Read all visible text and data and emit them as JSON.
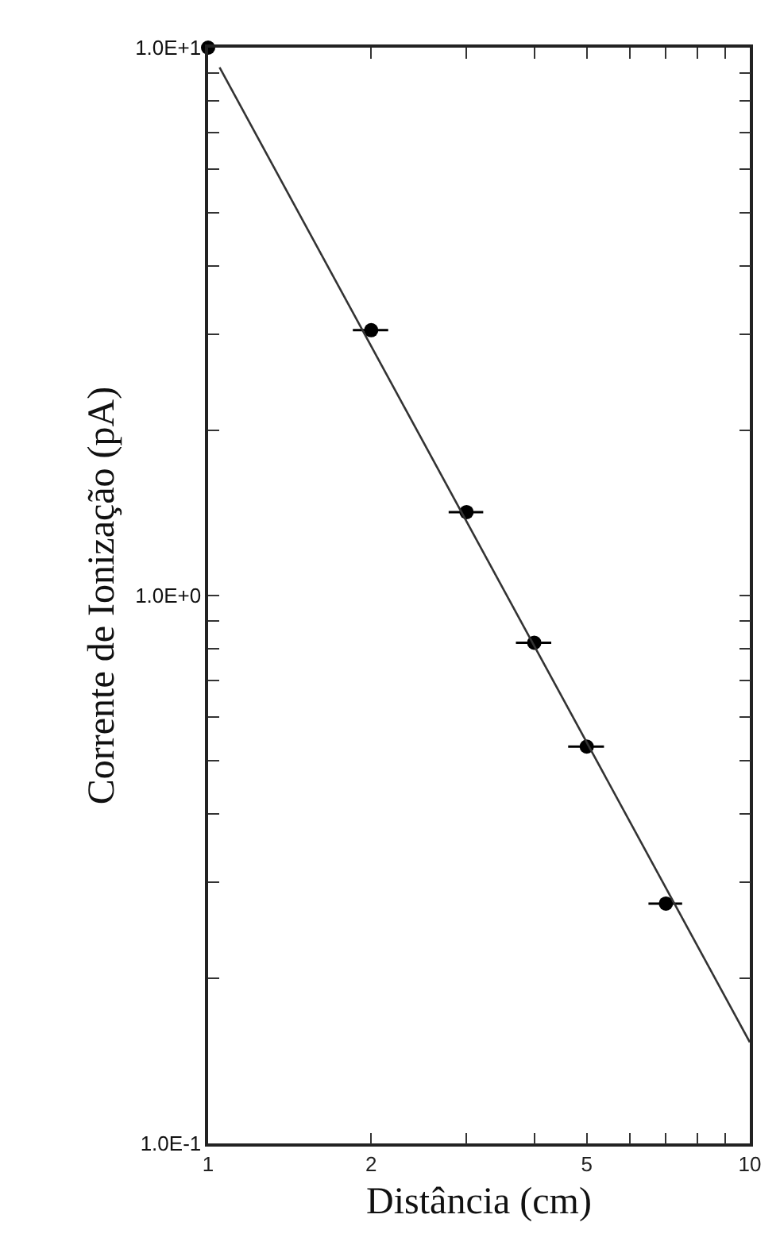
{
  "chart_data": {
    "type": "scatter",
    "xlabel": "Distância (cm)",
    "ylabel": "Corrente de Ionização (pA)",
    "log": "xy",
    "legend": false,
    "xlim": [
      1,
      10
    ],
    "ylim": [
      0.1,
      10
    ],
    "xticks": [
      1,
      2,
      {
        "value": 3,
        "label": null
      },
      {
        "value": 4,
        "label": null
      },
      5,
      {
        "value": 6,
        "label": null
      },
      {
        "value": 7,
        "label": null
      },
      {
        "value": 8,
        "label": null
      },
      {
        "value": 9,
        "label": null
      },
      10
    ],
    "yticks": [
      {
        "value": 0.1,
        "label": "1.0E-1"
      },
      {
        "value": 0.2,
        "label": null
      },
      {
        "value": 0.3,
        "label": null
      },
      {
        "value": 0.4,
        "label": null
      },
      {
        "value": 0.5,
        "label": null
      },
      {
        "value": 0.6,
        "label": null
      },
      {
        "value": 0.7,
        "label": null
      },
      {
        "value": 0.8,
        "label": null
      },
      {
        "value": 0.9,
        "label": null
      },
      {
        "value": 1,
        "label": "1.0E+0"
      },
      {
        "value": 2,
        "label": null
      },
      {
        "value": 3,
        "label": null
      },
      {
        "value": 4,
        "label": null
      },
      {
        "value": 5,
        "label": null
      },
      {
        "value": 6,
        "label": null
      },
      {
        "value": 7,
        "label": null
      },
      {
        "value": 8,
        "label": null
      },
      {
        "value": 9,
        "label": null
      },
      {
        "value": 10,
        "label": "1.0E+1"
      }
    ],
    "series": [
      {
        "marker": "circle",
        "color": "#000000",
        "x": [
          1,
          2,
          3,
          4,
          5,
          7
        ],
        "values": [
          10,
          3.05,
          1.42,
          0.82,
          0.53,
          0.274
        ],
        "xerrors": [
          null,
          0.15,
          0.22,
          0.3,
          0.38,
          0.5
        ]
      },
      {
        "type": "line",
        "marker": "none",
        "color": "#333333",
        "x": [
          1.05,
          10
        ],
        "values": [
          9.2,
          0.153
        ]
      }
    ]
  }
}
